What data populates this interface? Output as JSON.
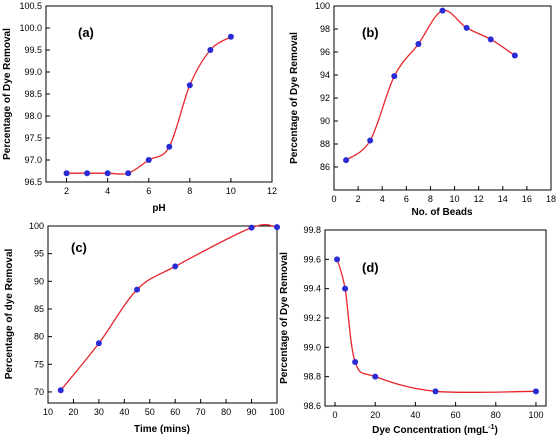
{
  "colors": {
    "curve": "#e8262b",
    "point": "#2b2bd6",
    "axis": "#000000"
  },
  "chart_data": [
    {
      "type": "line",
      "panel_label": "(a)",
      "xlabel": "pH",
      "ylabel": "Percentage of Dye Removal",
      "xlim": [
        1,
        12
      ],
      "ylim": [
        96.5,
        100.5
      ],
      "xticks": [
        "2",
        "4",
        "6",
        "8",
        "10",
        "12"
      ],
      "yticks": [
        "96.5",
        "97.0",
        "97.5",
        "98.0",
        "98.5",
        "99.0",
        "99.5",
        "100.0",
        "100.5"
      ],
      "series": [
        {
          "x": [
            2,
            3,
            4,
            5,
            6,
            7,
            8,
            9,
            10
          ],
          "y": [
            96.7,
            96.7,
            96.7,
            96.7,
            97.0,
            97.3,
            98.7,
            99.5,
            99.8
          ]
        }
      ]
    },
    {
      "type": "line",
      "panel_label": "(b)",
      "xlabel": "No. of Beads",
      "ylabel": "Percentage of Dye Removal",
      "xlim": [
        0,
        18
      ],
      "ylim": [
        84,
        100
      ],
      "xticks": [
        "0",
        "2",
        "4",
        "6",
        "8",
        "10",
        "12",
        "14",
        "16",
        "18"
      ],
      "yticks": [
        "86",
        "88",
        "90",
        "92",
        "94",
        "96",
        "98",
        "100"
      ],
      "series": [
        {
          "x": [
            1,
            3,
            5,
            7,
            9,
            11,
            13,
            15
          ],
          "y": [
            86.6,
            88.3,
            93.9,
            96.7,
            99.6,
            98.1,
            97.1,
            95.7
          ]
        }
      ]
    },
    {
      "type": "line",
      "panel_label": "(c)",
      "xlabel": "Time (mins)",
      "ylabel": "Percentage of dye Removal",
      "xlim": [
        10,
        100
      ],
      "ylim": [
        68,
        100
      ],
      "xticks": [
        "10",
        "20",
        "30",
        "40",
        "50",
        "60",
        "70",
        "80",
        "90",
        "100"
      ],
      "yticks": [
        "70",
        "75",
        "80",
        "85",
        "90",
        "95",
        "100"
      ],
      "series": [
        {
          "x": [
            15,
            30,
            45,
            60,
            90,
            100
          ],
          "y": [
            70.3,
            78.8,
            88.5,
            92.7,
            99.7,
            99.8
          ]
        }
      ]
    },
    {
      "type": "line",
      "panel_label": "(d)",
      "xlabel": "Dye Concentration (mgL",
      "xlabel_sup": "-1",
      "xlabel_tail": ")",
      "ylabel": "Percentage of Dye Removal",
      "xlim": [
        -5,
        105
      ],
      "ylim": [
        98.6,
        99.8
      ],
      "xticks": [
        "0",
        "20",
        "40",
        "60",
        "80",
        "100"
      ],
      "yticks": [
        "98.6",
        "98.8",
        "99.0",
        "99.2",
        "99.4",
        "99.6",
        "99.8"
      ],
      "series": [
        {
          "x": [
            1,
            5,
            10,
            20,
            50,
            100
          ],
          "y": [
            99.6,
            99.4,
            98.9,
            98.8,
            98.7,
            98.7
          ]
        }
      ]
    }
  ]
}
